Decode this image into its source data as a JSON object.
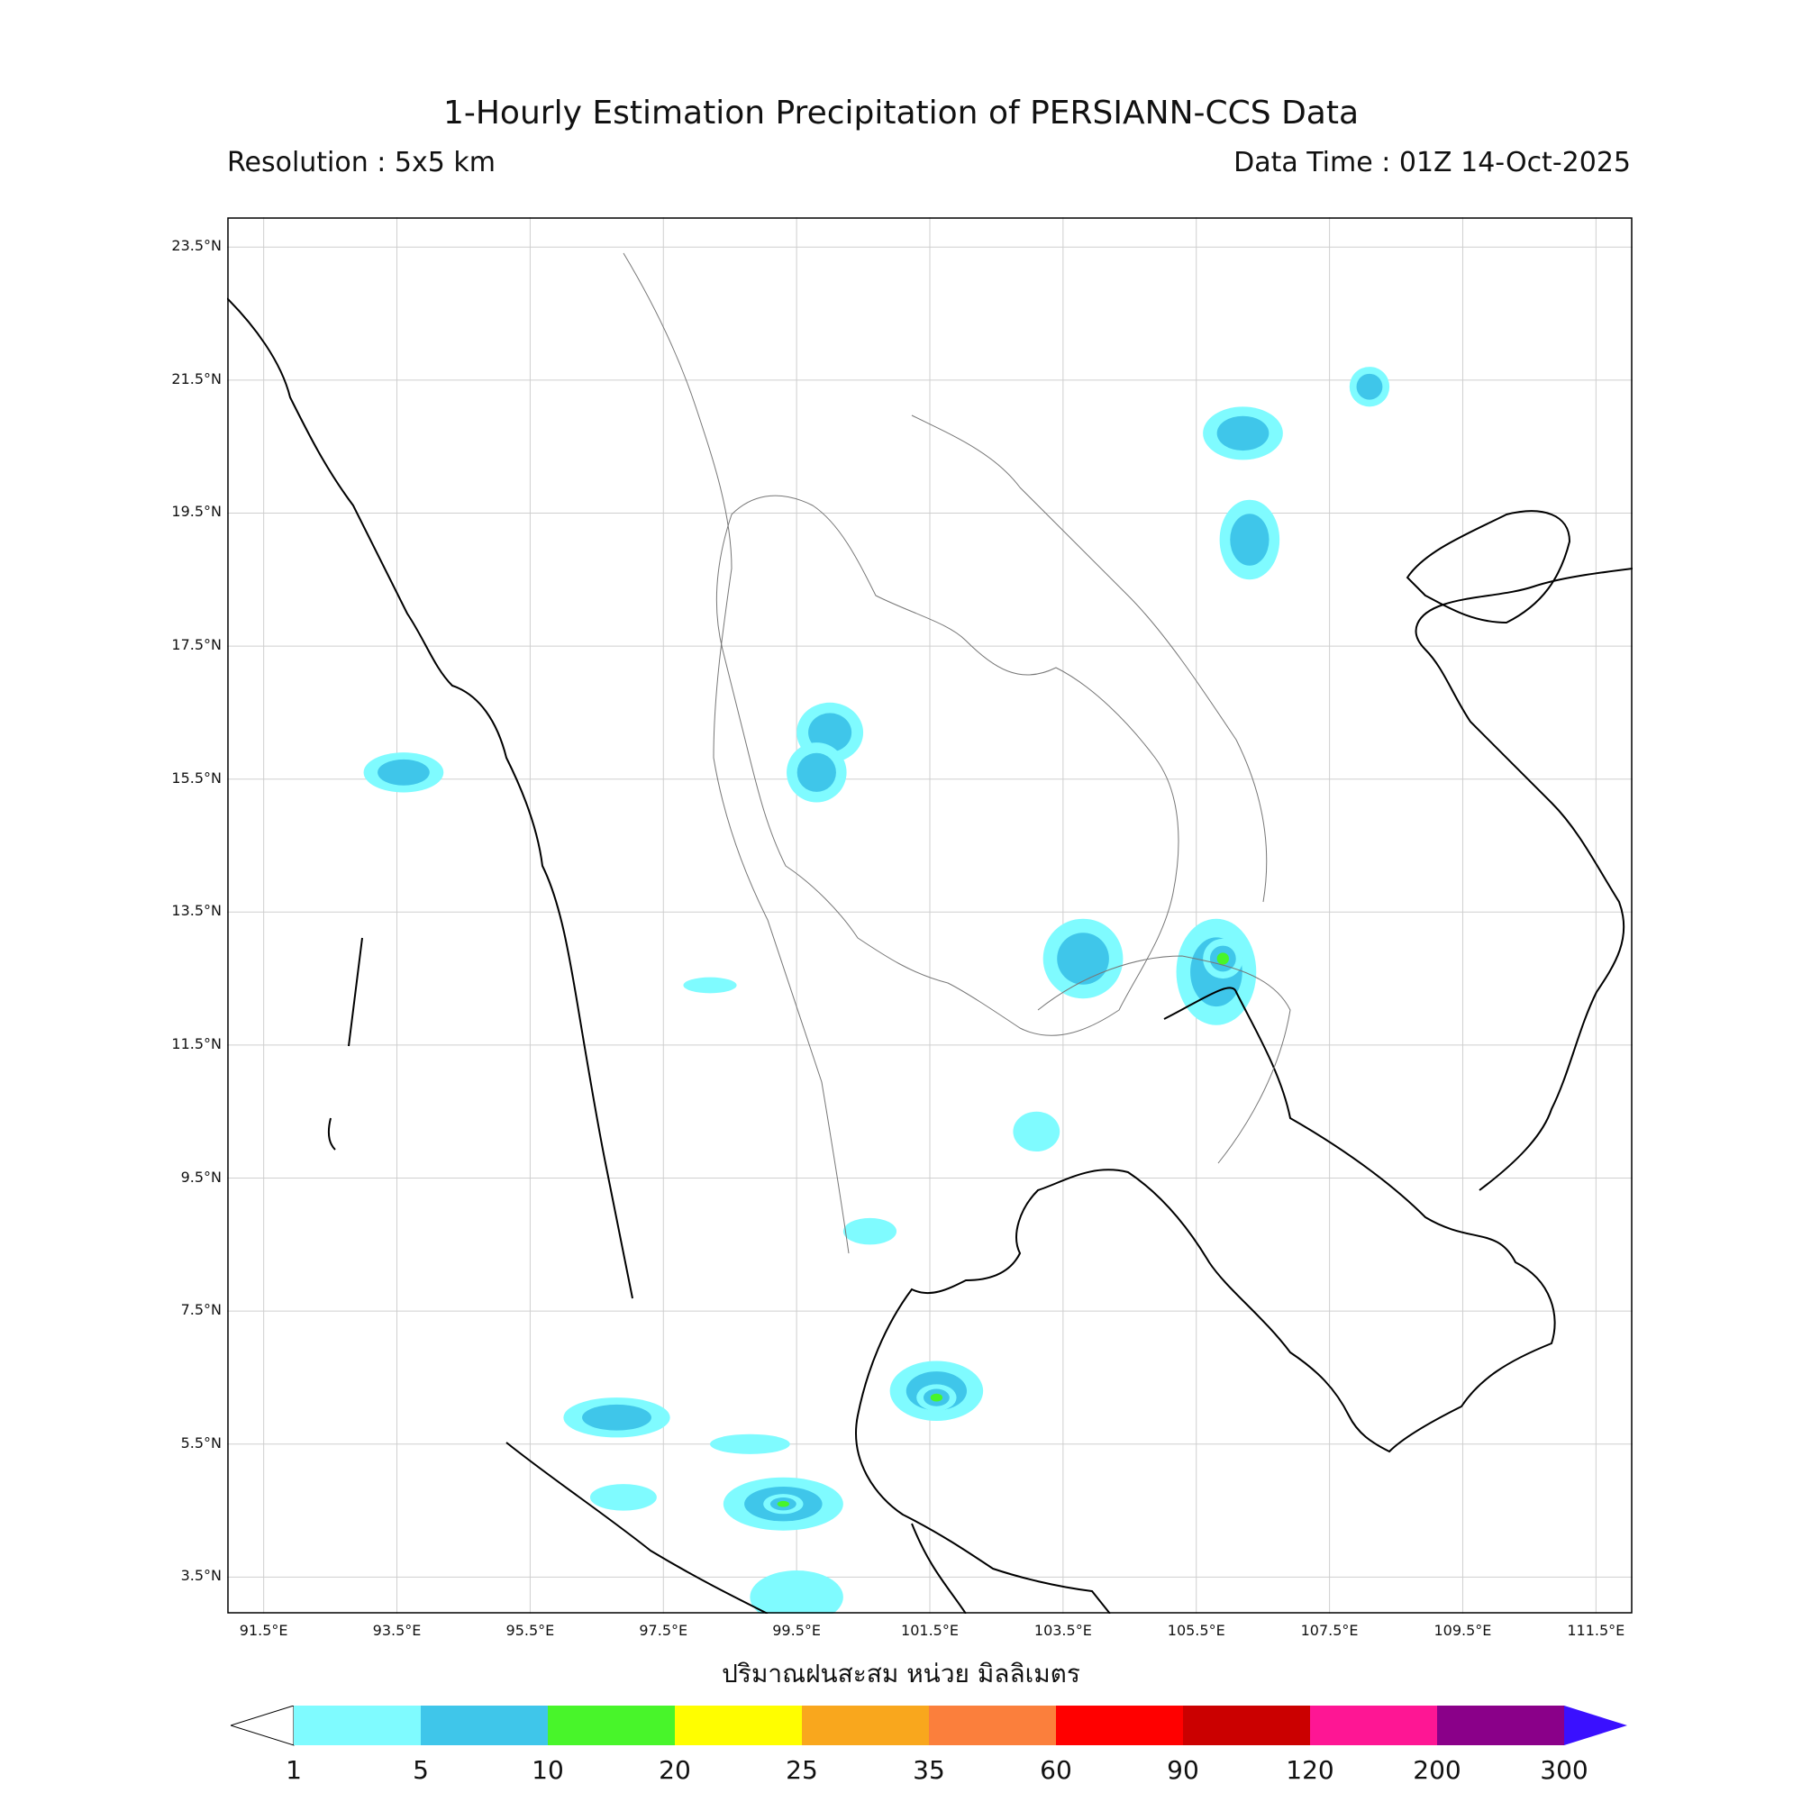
{
  "title": "1-Hourly Estimation Precipitation of PERSIANN-CCS Data",
  "resolution_label": "Resolution : 5x5 km",
  "data_time_label": "Data Time : 01Z 14-Oct-2025",
  "x_axis_title": "ปริมาณฝนสะสม หน่วย มิลลิเมตร",
  "map_extent": {
    "lon_min": 90.95,
    "lon_max": 112.05,
    "lat_min": 2.95,
    "lat_max": 23.95
  },
  "lat_ticks": [
    "23.5°N",
    "21.5°N",
    "19.5°N",
    "17.5°N",
    "15.5°N",
    "13.5°N",
    "11.5°N",
    "9.5°N",
    "7.5°N",
    "5.5°N",
    "3.5°N"
  ],
  "lon_ticks": [
    "91.5°E",
    "93.5°E",
    "95.5°E",
    "97.5°E",
    "99.5°E",
    "101.5°E",
    "103.5°E",
    "105.5°E",
    "107.5°E",
    "109.5°E",
    "111.5°E"
  ],
  "colorbar": {
    "labels": [
      "1",
      "5",
      "10",
      "20",
      "25",
      "35",
      "60",
      "90",
      "120",
      "200",
      "300"
    ],
    "colors": [
      "#7ffbff",
      "#3fc6ea",
      "#48f52a",
      "#fffe00",
      "#f9a71d",
      "#fb7f3c",
      "#ff0000",
      "#cb0000",
      "#fe1694",
      "#8a0089"
    ],
    "under_color": "#ffffff",
    "over_color": "#3a10ff"
  },
  "rain_cells": [
    {
      "lon": 93.6,
      "lat": 15.6,
      "rx": 0.6,
      "ry": 0.3,
      "level": 1
    },
    {
      "lon": 100.0,
      "lat": 16.2,
      "rx": 0.5,
      "ry": 0.45,
      "level": 1
    },
    {
      "lon": 99.8,
      "lat": 15.6,
      "rx": 0.45,
      "ry": 0.45,
      "level": 1
    },
    {
      "lon": 103.8,
      "lat": 12.8,
      "rx": 0.6,
      "ry": 0.6,
      "level": 1
    },
    {
      "lon": 105.8,
      "lat": 12.6,
      "rx": 0.6,
      "ry": 0.8,
      "level": 1
    },
    {
      "lon": 105.9,
      "lat": 12.8,
      "rx": 0.3,
      "ry": 0.3,
      "level": 2
    },
    {
      "lon": 106.2,
      "lat": 20.7,
      "rx": 0.6,
      "ry": 0.4,
      "level": 1
    },
    {
      "lon": 106.3,
      "lat": 19.1,
      "rx": 0.45,
      "ry": 0.6,
      "level": 1
    },
    {
      "lon": 101.6,
      "lat": 6.3,
      "rx": 0.7,
      "ry": 0.45,
      "level": 1
    },
    {
      "lon": 101.6,
      "lat": 6.2,
      "rx": 0.3,
      "ry": 0.2,
      "level": 2
    },
    {
      "lon": 96.8,
      "lat": 5.9,
      "rx": 0.8,
      "ry": 0.3,
      "level": 1
    },
    {
      "lon": 99.3,
      "lat": 4.6,
      "rx": 0.9,
      "ry": 0.4,
      "level": 1
    },
    {
      "lon": 99.3,
      "lat": 4.6,
      "rx": 0.3,
      "ry": 0.15,
      "level": 2
    },
    {
      "lon": 99.5,
      "lat": 3.2,
      "rx": 0.7,
      "ry": 0.4,
      "level": 0
    },
    {
      "lon": 98.8,
      "lat": 5.5,
      "rx": 0.6,
      "ry": 0.15,
      "level": 0
    },
    {
      "lon": 96.9,
      "lat": 4.7,
      "rx": 0.5,
      "ry": 0.2,
      "level": 0
    },
    {
      "lon": 98.2,
      "lat": 12.4,
      "rx": 0.4,
      "ry": 0.12,
      "level": 0
    },
    {
      "lon": 108.1,
      "lat": 21.4,
      "rx": 0.3,
      "ry": 0.3,
      "level": 1
    },
    {
      "lon": 103.1,
      "lat": 10.2,
      "rx": 0.35,
      "ry": 0.3,
      "level": 0
    },
    {
      "lon": 100.6,
      "lat": 8.7,
      "rx": 0.4,
      "ry": 0.2,
      "level": 0
    }
  ]
}
